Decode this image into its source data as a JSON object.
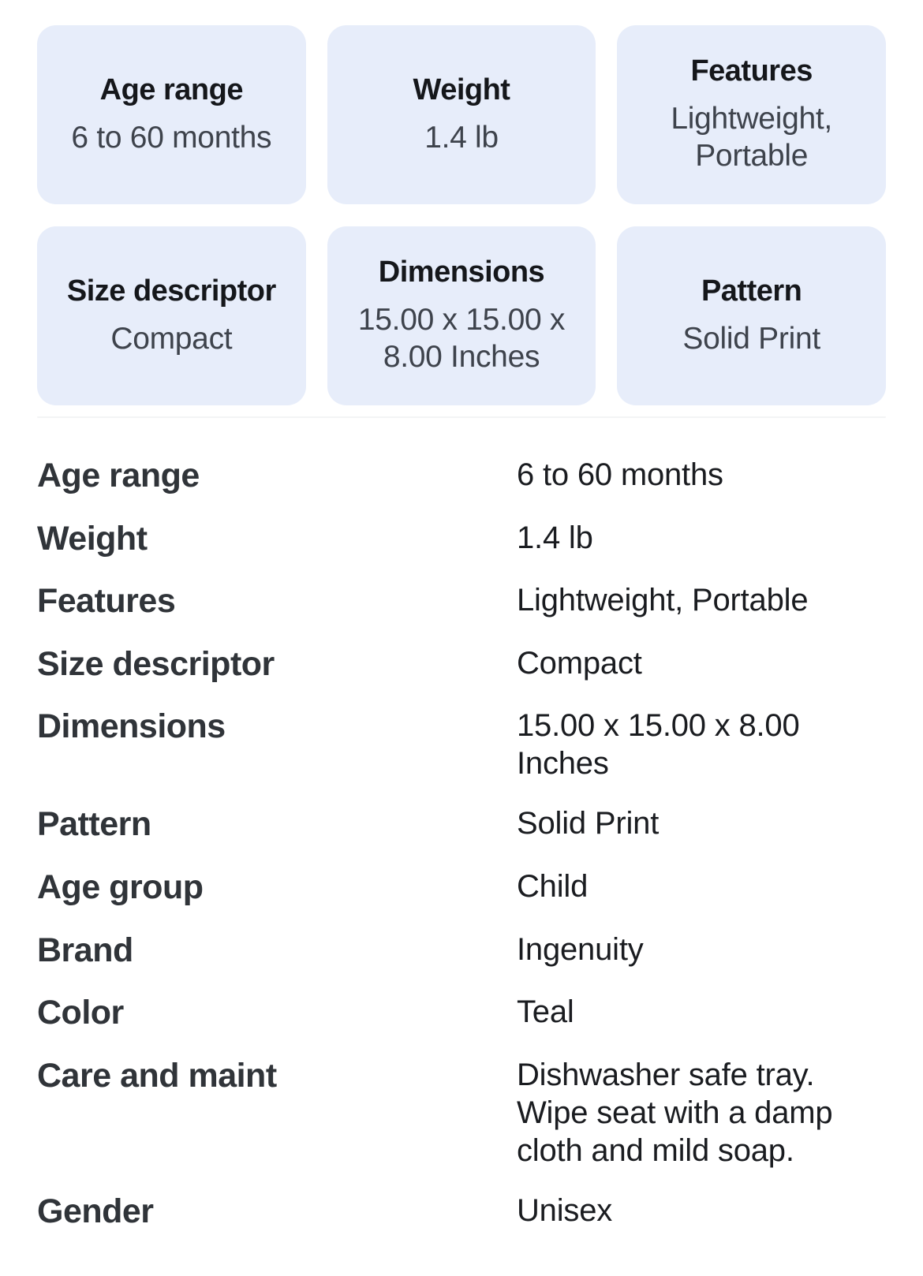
{
  "colors": {
    "card_background": "#E7EDFA",
    "card_title_text": "#15171B",
    "card_value_text": "#3E434C",
    "list_label_text": "#303439",
    "list_value_text": "#1A1C20",
    "page_background": "#FFFFFF"
  },
  "cards": [
    {
      "label": "Age range",
      "value": "6 to 60 months"
    },
    {
      "label": "Weight",
      "value": "1.4 lb"
    },
    {
      "label": "Features",
      "value": "Lightweight, Portable"
    },
    {
      "label": "Size descriptor",
      "value": "Compact"
    },
    {
      "label": "Dimensions",
      "value": "15.00 x 15.00 x 8.00 Inches"
    },
    {
      "label": "Pattern",
      "value": "Solid Print"
    }
  ],
  "specs": [
    {
      "label": "Age range",
      "value": "6 to 60 months"
    },
    {
      "label": "Weight",
      "value": "1.4 lb"
    },
    {
      "label": "Features",
      "value": "Lightweight, Portable"
    },
    {
      "label": "Size descriptor",
      "value": "Compact"
    },
    {
      "label": "Dimensions",
      "value": "15.00 x 15.00 x 8.00 Inches"
    },
    {
      "label": "Pattern",
      "value": "Solid Print"
    },
    {
      "label": "Age group",
      "value": "Child"
    },
    {
      "label": "Brand",
      "value": "Ingenuity"
    },
    {
      "label": "Color",
      "value": "Teal"
    },
    {
      "label": "Care and maint",
      "value": "Dishwasher safe tray. Wipe seat with a damp cloth and mild soap."
    },
    {
      "label": "Gender",
      "value": "Unisex"
    }
  ]
}
